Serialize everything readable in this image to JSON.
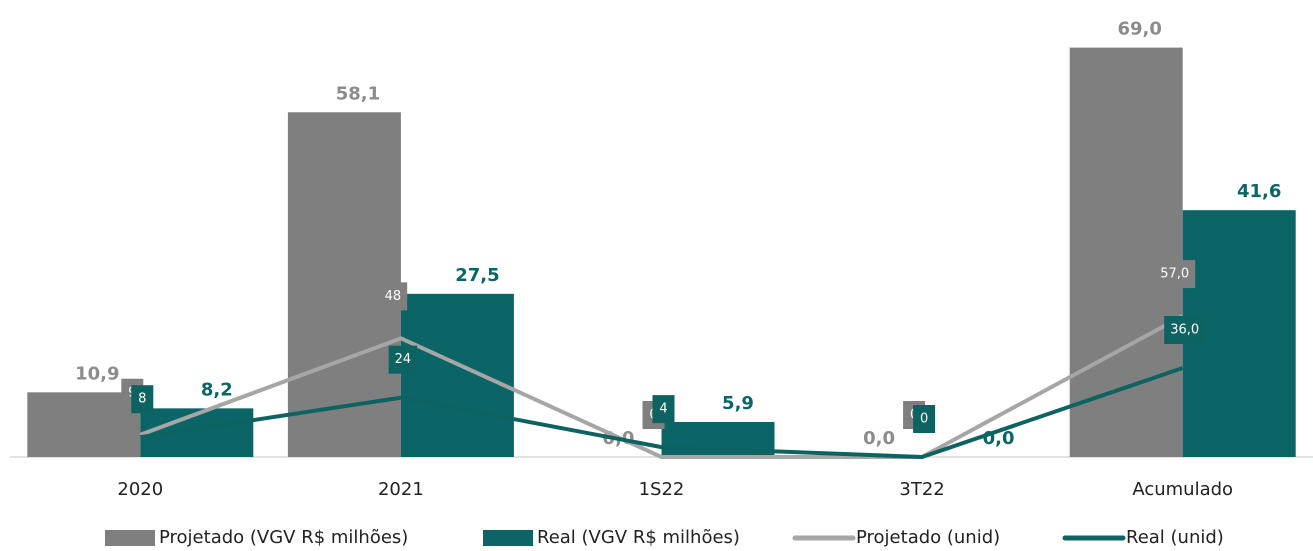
{
  "chart_data": {
    "type": "bar_line",
    "categories": [
      "2020",
      "2021",
      "1S22",
      "3T22",
      "Acumulado"
    ],
    "ylim": [
      0,
      75
    ],
    "y2lim": [
      0,
      180
    ],
    "series": [
      {
        "name": "Projetado (VGV R$ milhões)",
        "kind": "bar",
        "color": "#7f7f7f",
        "values": [
          10.9,
          58.1,
          0.0,
          0.0,
          69.0
        ],
        "value_labels": [
          "10,9",
          "58,1",
          "0,0",
          "0,0",
          "69,0"
        ]
      },
      {
        "name": "Real (VGV R$ milhões)",
        "kind": "bar",
        "color": "#0b6566",
        "values": [
          8.2,
          27.5,
          5.9,
          0.0,
          41.6
        ],
        "value_labels": [
          "8,2",
          "27,5",
          "5,9",
          "0,0",
          "41,6"
        ]
      },
      {
        "name": "Projetado (unid)",
        "kind": "line",
        "axis": "y2",
        "color": "#a6a6a6",
        "values": [
          9,
          48,
          0,
          0,
          57
        ],
        "value_labels": [
          "9",
          "48",
          "0",
          "0",
          "57,0"
        ]
      },
      {
        "name": "Real (unid)",
        "kind": "line",
        "axis": "y2",
        "color": "#0d6262",
        "values": [
          8,
          24,
          4,
          0,
          36
        ],
        "value_labels": [
          "8",
          "24",
          "4",
          "0",
          "36,0"
        ]
      }
    ]
  }
}
